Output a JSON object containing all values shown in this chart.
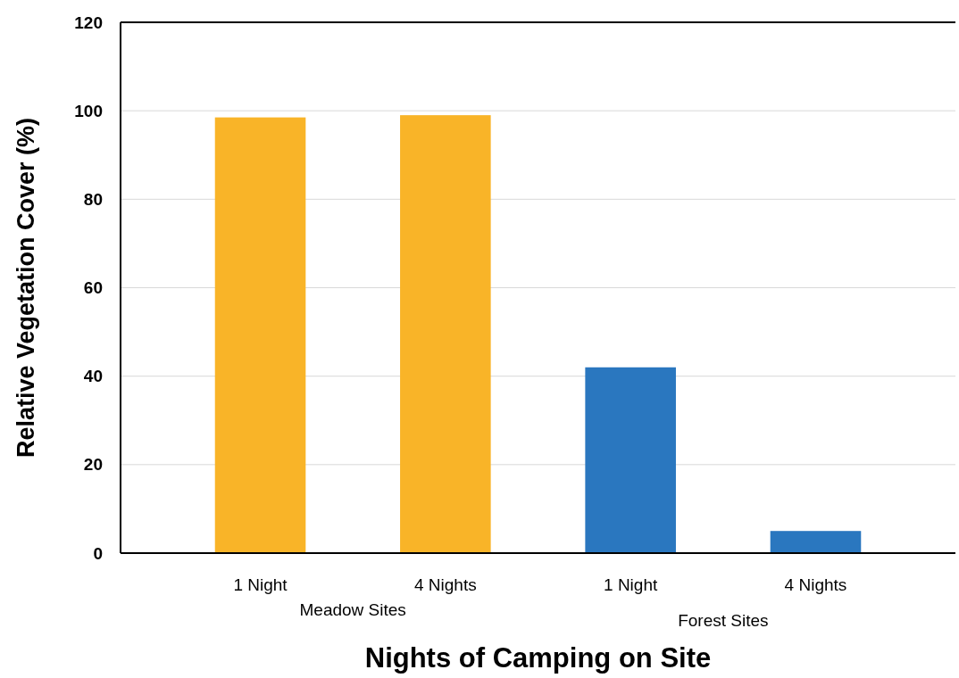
{
  "chart_data": {
    "type": "bar",
    "xlabel": "Nights of Camping on Site",
    "ylabel": "Relative Vegetation Cover (%)",
    "categories": [
      "1 Night",
      "4 Nights",
      "1 Night",
      "4 Nights"
    ],
    "values": [
      98.5,
      99,
      42,
      5
    ],
    "colors": [
      "#f9b428",
      "#f9b428",
      "#2a77bf",
      "#2a77bf"
    ],
    "ylim": [
      0,
      120
    ],
    "yticks": [
      0,
      20,
      40,
      60,
      80,
      100,
      120
    ],
    "grid": "y",
    "annotations": [
      "Meadow Sites",
      "Forest Sites"
    ]
  }
}
